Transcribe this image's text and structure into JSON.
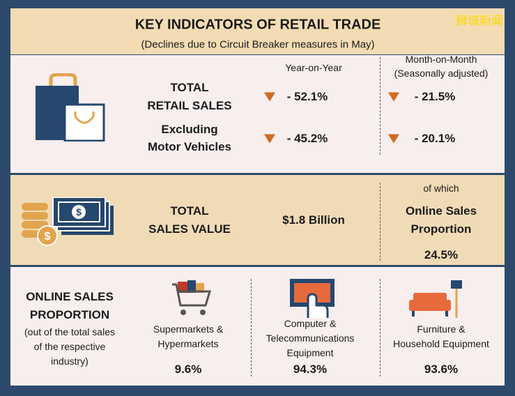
{
  "watermark": "狮城新闻",
  "header": {
    "title": "KEY INDICATORS OF RETAIL TRADE",
    "subtitle": "(Declines due to Circuit Breaker measures in May)"
  },
  "retail": {
    "yoy_header": "Year-on-Year",
    "mom_header": [
      "Month-on-Month",
      "(Seasonally adjusted)"
    ],
    "rows": [
      {
        "label": [
          "TOTAL",
          "RETAIL SALES"
        ],
        "yoy": "- 52.1%",
        "mom": "- 21.5%"
      },
      {
        "label": [
          "Excluding",
          "Motor Vehicles"
        ],
        "yoy": "- 45.2%",
        "mom": "- 20.1%"
      }
    ]
  },
  "sales_value": {
    "label": [
      "TOTAL",
      "SALES VALUE"
    ],
    "value": "$1.8 Billion",
    "of_which": "of which",
    "online_label": [
      "Online Sales",
      "Proportion"
    ],
    "online_value": "24.5%"
  },
  "online": {
    "title": [
      "ONLINE SALES",
      "PROPORTION"
    ],
    "note": [
      "(out of the total sales",
      "of the respective",
      "industry)"
    ],
    "items": [
      {
        "label": [
          "Supermarkets &",
          "Hypermarkets"
        ],
        "value": "9.6%"
      },
      {
        "label": [
          "Computer &",
          "Telecommunications",
          "Equipment"
        ],
        "value": "94.3%"
      },
      {
        "label": [
          "Furniture &",
          "Household Equipment"
        ],
        "value": "93.6%"
      }
    ]
  }
}
